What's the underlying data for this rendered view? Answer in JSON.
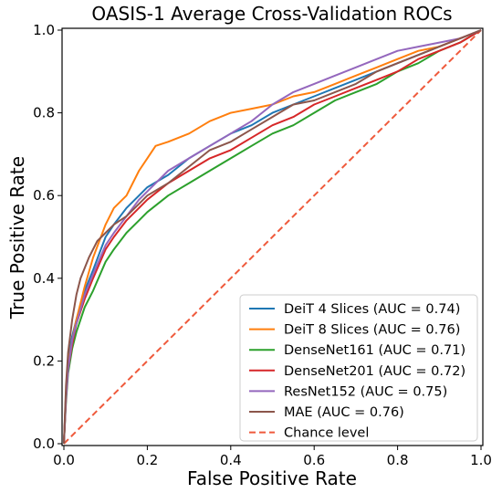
{
  "chart_data": {
    "type": "line",
    "title": "OASIS-1 Average Cross-Validation ROCs",
    "xlabel": "False Positive Rate",
    "ylabel": "True Positive Rate",
    "xlim": [
      0.0,
      1.0
    ],
    "ylim": [
      0.0,
      1.0
    ],
    "xticks": [
      "0.0",
      "0.2",
      "0.4",
      "0.6",
      "0.8",
      "1.0"
    ],
    "yticks": [
      "0.0",
      "0.2",
      "0.4",
      "0.6",
      "0.8",
      "1.0"
    ],
    "grid": false,
    "legend_position": "lower-right",
    "series": [
      {
        "name": "DeiT 4 Slices (AUC = 0.74)",
        "color": "#1f77b4",
        "x": [
          0,
          0.005,
          0.01,
          0.02,
          0.03,
          0.05,
          0.07,
          0.1,
          0.12,
          0.15,
          0.18,
          0.2,
          0.25,
          0.3,
          0.35,
          0.4,
          0.45,
          0.5,
          0.55,
          0.6,
          0.65,
          0.7,
          0.75,
          0.8,
          0.85,
          0.9,
          0.95,
          1.0
        ],
        "y": [
          0,
          0.12,
          0.2,
          0.26,
          0.3,
          0.37,
          0.42,
          0.5,
          0.53,
          0.57,
          0.6,
          0.62,
          0.65,
          0.69,
          0.72,
          0.75,
          0.77,
          0.8,
          0.82,
          0.84,
          0.86,
          0.88,
          0.9,
          0.92,
          0.94,
          0.96,
          0.98,
          1.0
        ]
      },
      {
        "name": "DeiT 8 Slices (AUC = 0.76)",
        "color": "#ff7f0e",
        "x": [
          0,
          0.005,
          0.01,
          0.02,
          0.03,
          0.05,
          0.07,
          0.1,
          0.12,
          0.15,
          0.18,
          0.2,
          0.22,
          0.25,
          0.3,
          0.35,
          0.4,
          0.45,
          0.5,
          0.55,
          0.6,
          0.65,
          0.7,
          0.75,
          0.8,
          0.85,
          0.9,
          0.95,
          1.0
        ],
        "y": [
          0,
          0.12,
          0.19,
          0.25,
          0.3,
          0.38,
          0.45,
          0.53,
          0.57,
          0.6,
          0.66,
          0.69,
          0.72,
          0.73,
          0.75,
          0.78,
          0.8,
          0.81,
          0.82,
          0.84,
          0.85,
          0.87,
          0.89,
          0.91,
          0.93,
          0.95,
          0.96,
          0.98,
          1.0
        ]
      },
      {
        "name": "DenseNet161 (AUC = 0.71)",
        "color": "#2ca02c",
        "x": [
          0,
          0.005,
          0.01,
          0.02,
          0.03,
          0.05,
          0.07,
          0.1,
          0.12,
          0.15,
          0.18,
          0.2,
          0.25,
          0.3,
          0.35,
          0.4,
          0.45,
          0.5,
          0.55,
          0.6,
          0.65,
          0.7,
          0.75,
          0.8,
          0.85,
          0.9,
          0.95,
          1.0
        ],
        "y": [
          0,
          0.1,
          0.17,
          0.23,
          0.27,
          0.33,
          0.37,
          0.44,
          0.47,
          0.51,
          0.54,
          0.56,
          0.6,
          0.63,
          0.66,
          0.69,
          0.72,
          0.75,
          0.77,
          0.8,
          0.83,
          0.85,
          0.87,
          0.9,
          0.92,
          0.95,
          0.97,
          1.0
        ]
      },
      {
        "name": "DenseNet201 (AUC = 0.72)",
        "color": "#d62728",
        "x": [
          0,
          0.005,
          0.01,
          0.02,
          0.03,
          0.05,
          0.07,
          0.1,
          0.12,
          0.15,
          0.18,
          0.2,
          0.25,
          0.3,
          0.35,
          0.4,
          0.45,
          0.5,
          0.55,
          0.6,
          0.65,
          0.7,
          0.75,
          0.8,
          0.85,
          0.9,
          0.95,
          1.0
        ],
        "y": [
          0,
          0.11,
          0.18,
          0.24,
          0.29,
          0.35,
          0.4,
          0.47,
          0.5,
          0.54,
          0.57,
          0.59,
          0.63,
          0.66,
          0.69,
          0.71,
          0.74,
          0.77,
          0.79,
          0.82,
          0.84,
          0.86,
          0.88,
          0.9,
          0.93,
          0.95,
          0.97,
          1.0
        ]
      },
      {
        "name": "ResNet152 (AUC = 0.75)",
        "color": "#9467bd",
        "x": [
          0,
          0.005,
          0.01,
          0.02,
          0.03,
          0.05,
          0.07,
          0.1,
          0.12,
          0.15,
          0.18,
          0.2,
          0.25,
          0.3,
          0.35,
          0.4,
          0.45,
          0.5,
          0.55,
          0.6,
          0.65,
          0.7,
          0.75,
          0.8,
          0.85,
          0.9,
          0.95,
          1.0
        ],
        "y": [
          0,
          0.11,
          0.18,
          0.25,
          0.29,
          0.36,
          0.41,
          0.48,
          0.51,
          0.55,
          0.59,
          0.61,
          0.66,
          0.69,
          0.72,
          0.75,
          0.78,
          0.82,
          0.85,
          0.87,
          0.89,
          0.91,
          0.93,
          0.95,
          0.96,
          0.97,
          0.98,
          1.0
        ]
      },
      {
        "name": "MAE (AUC = 0.76)",
        "color": "#8c564b",
        "x": [
          0,
          0.005,
          0.01,
          0.02,
          0.03,
          0.04,
          0.06,
          0.08,
          0.1,
          0.12,
          0.15,
          0.18,
          0.2,
          0.25,
          0.3,
          0.35,
          0.4,
          0.45,
          0.5,
          0.55,
          0.6,
          0.65,
          0.7,
          0.75,
          0.8,
          0.85,
          0.9,
          0.95,
          1.0
        ],
        "y": [
          0,
          0.14,
          0.22,
          0.3,
          0.36,
          0.4,
          0.45,
          0.49,
          0.51,
          0.53,
          0.55,
          0.58,
          0.6,
          0.63,
          0.67,
          0.71,
          0.73,
          0.76,
          0.79,
          0.82,
          0.83,
          0.85,
          0.87,
          0.9,
          0.92,
          0.94,
          0.96,
          0.98,
          1.0
        ]
      }
    ],
    "reference_line": {
      "name": "Chance level",
      "color": "#ef5a3c",
      "style": "dashed",
      "x": [
        0,
        1
      ],
      "y": [
        0,
        1
      ]
    }
  }
}
